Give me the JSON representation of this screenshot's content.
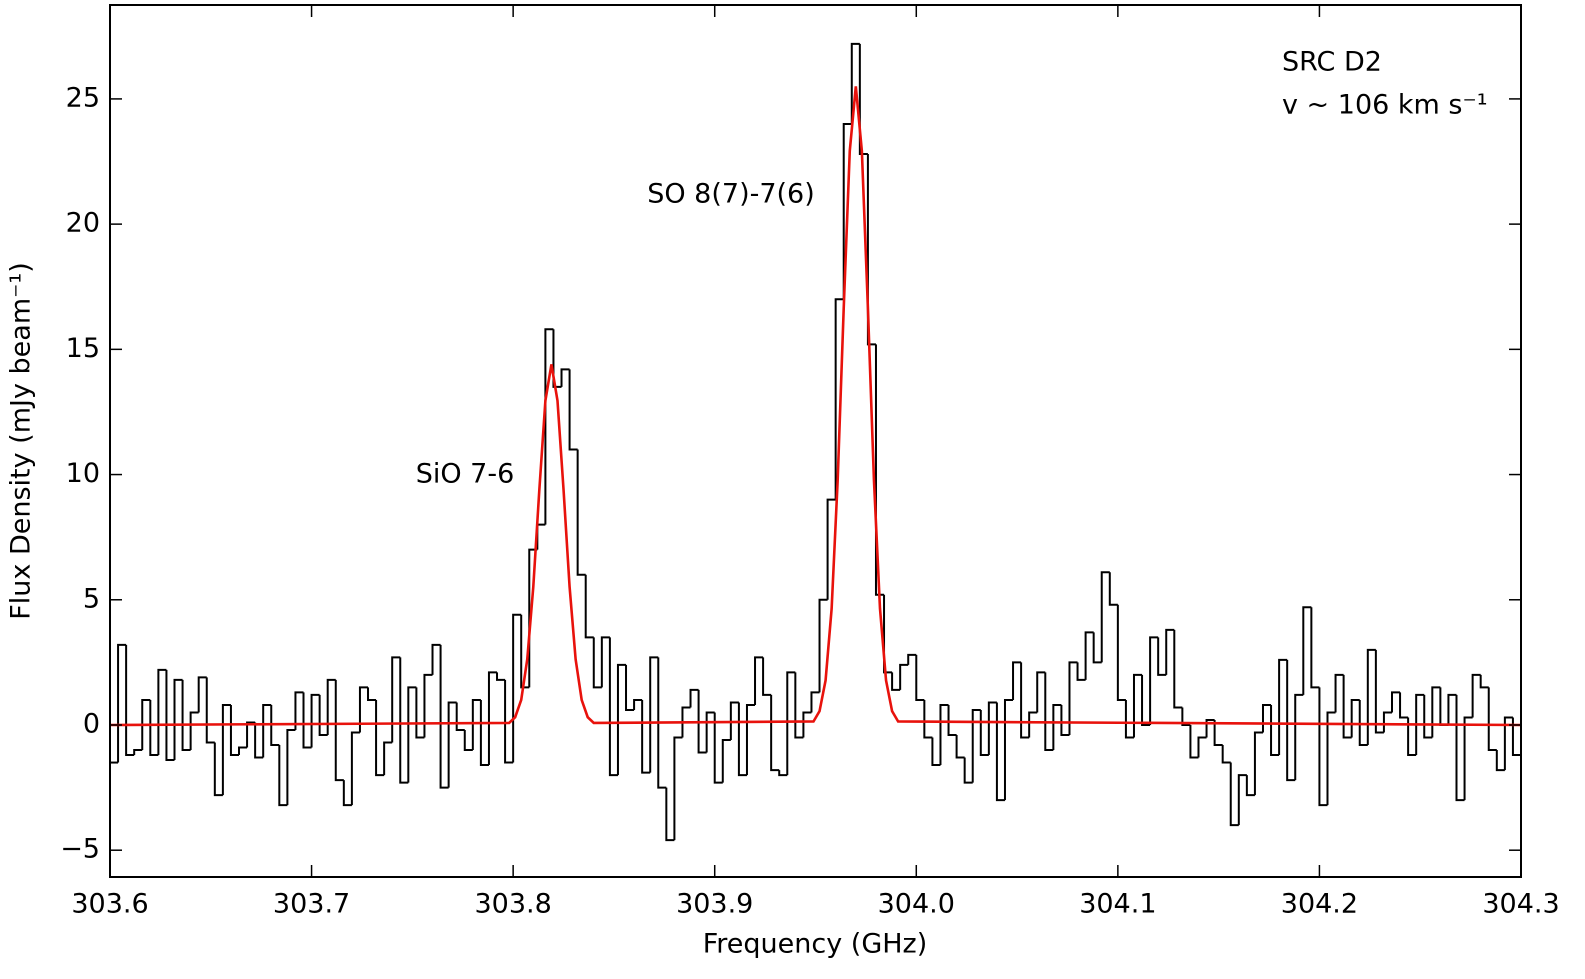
{
  "chart_data": {
    "type": "step",
    "xlabel": "Frequency (GHz)",
    "ylabel": "Flux Density (mJy beam⁻¹)",
    "annotations": [
      "SiO 7-6",
      "SO 8(7)-7(6)",
      "SRC D2",
      "v ~ 106 km s⁻¹"
    ],
    "xlim": [
      303.6,
      304.3
    ],
    "ylim": [
      -6.07,
      28.75
    ],
    "xticks": [
      303.6,
      303.7,
      303.8,
      303.9,
      {
        "value": 304.0,
        "label": "304.0"
      },
      304.1,
      304.2,
      304.3
    ],
    "yticks": [
      {
        "value": -5,
        "label": "−5"
      },
      0,
      5,
      10,
      15,
      20,
      25
    ],
    "channel_width": 0.004,
    "series": [
      {
        "color": "#000000",
        "style": "step",
        "x": [
          303.602,
          303.606,
          303.61,
          303.614,
          303.618,
          303.622,
          303.626,
          303.63,
          303.634,
          303.638,
          303.642,
          303.646,
          303.65,
          303.654,
          303.658,
          303.662,
          303.666,
          303.67,
          303.674,
          303.678,
          303.682,
          303.686,
          303.69,
          303.694,
          303.698,
          303.702,
          303.706,
          303.71,
          303.714,
          303.718,
          303.722,
          303.726,
          303.73,
          303.734,
          303.738,
          303.742,
          303.746,
          303.75,
          303.754,
          303.758,
          303.762,
          303.766,
          303.77,
          303.774,
          303.778,
          303.782,
          303.786,
          303.79,
          303.794,
          303.798,
          303.802,
          303.806,
          303.81,
          303.814,
          303.818,
          303.822,
          303.826,
          303.83,
          303.834,
          303.838,
          303.842,
          303.846,
          303.85,
          303.854,
          303.858,
          303.862,
          303.866,
          303.87,
          303.874,
          303.878,
          303.882,
          303.886,
          303.89,
          303.894,
          303.898,
          303.902,
          303.906,
          303.91,
          303.914,
          303.918,
          303.922,
          303.926,
          303.93,
          303.934,
          303.938,
          303.942,
          303.946,
          303.95,
          303.954,
          303.958,
          303.962,
          303.966,
          303.97,
          303.974,
          303.978,
          303.982,
          303.986,
          303.99,
          303.994,
          303.998,
          304.002,
          304.006,
          304.01,
          304.014,
          304.018,
          304.022,
          304.026,
          304.03,
          304.034,
          304.038,
          304.042,
          304.046,
          304.05,
          304.054,
          304.058,
          304.062,
          304.066,
          304.07,
          304.074,
          304.078,
          304.082,
          304.086,
          304.09,
          304.094,
          304.098,
          304.102,
          304.106,
          304.11,
          304.114,
          304.118,
          304.122,
          304.126,
          304.13,
          304.134,
          304.138,
          304.142,
          304.146,
          304.15,
          304.154,
          304.158,
          304.162,
          304.166,
          304.17,
          304.174,
          304.178,
          304.182,
          304.186,
          304.19,
          304.194,
          304.198,
          304.202,
          304.206,
          304.21,
          304.214,
          304.218,
          304.222,
          304.226,
          304.23,
          304.234,
          304.238,
          304.242,
          304.246,
          304.25,
          304.254,
          304.258,
          304.262,
          304.266,
          304.27,
          304.274,
          304.278,
          304.282,
          304.286,
          304.29,
          304.294,
          304.298
        ],
        "values": [
          -1.5,
          3.2,
          -1.2,
          -1.0,
          1.0,
          -1.2,
          2.2,
          -1.4,
          1.8,
          -1.0,
          0.5,
          1.9,
          -0.7,
          -2.8,
          0.8,
          -1.2,
          -0.9,
          0.1,
          -1.3,
          0.8,
          -0.8,
          -3.2,
          -0.2,
          1.3,
          -0.9,
          1.2,
          -0.4,
          1.8,
          -2.2,
          -3.2,
          -0.3,
          1.5,
          1.0,
          -2.0,
          -0.7,
          2.7,
          -2.3,
          1.5,
          -0.5,
          2.0,
          3.2,
          -2.5,
          0.9,
          -0.2,
          -1.0,
          1.0,
          -1.6,
          2.1,
          1.8,
          -1.5,
          4.4,
          1.5,
          7.0,
          8.0,
          15.8,
          13.5,
          14.2,
          11.0,
          6.0,
          3.5,
          1.5,
          3.5,
          -2.0,
          2.4,
          0.6,
          1.0,
          -1.9,
          2.7,
          -2.5,
          -4.6,
          -0.5,
          0.7,
          1.4,
          -1.1,
          0.5,
          -2.3,
          -0.6,
          0.9,
          -2.0,
          0.8,
          2.7,
          1.2,
          -1.8,
          -2.0,
          2.1,
          -0.5,
          0.5,
          1.3,
          5.0,
          9.0,
          17.0,
          24.0,
          27.2,
          22.8,
          15.2,
          5.2,
          2.1,
          1.4,
          2.4,
          2.8,
          1.0,
          -0.5,
          -1.6,
          0.8,
          -0.4,
          -1.3,
          -2.3,
          0.6,
          -1.2,
          0.9,
          -3.0,
          1.0,
          2.5,
          -0.5,
          0.5,
          2.1,
          -1.0,
          0.8,
          -0.4,
          2.5,
          1.8,
          3.7,
          2.5,
          6.1,
          4.8,
          1.0,
          -0.5,
          2.0,
          0.0,
          3.5,
          2.0,
          3.8,
          0.7,
          0.0,
          -1.3,
          -0.5,
          0.2,
          -0.8,
          -1.5,
          -4.0,
          -2.0,
          -2.8,
          -0.3,
          0.8,
          -1.2,
          2.6,
          -2.2,
          1.2,
          4.7,
          1.5,
          -3.2,
          0.5,
          2.0,
          -0.5,
          1.0,
          -0.8,
          3.0,
          -0.3,
          0.5,
          1.3,
          0.3,
          -1.2,
          1.2,
          -0.5,
          1.5,
          0.0,
          1.2,
          -3.0,
          0.3,
          2.0,
          1.5,
          -1.0,
          -1.8,
          0.3,
          -1.2
        ]
      },
      {
        "color": "#e8120c",
        "style": "line",
        "x": [
          303.6,
          303.798,
          303.801,
          303.804,
          303.807,
          303.81,
          303.813,
          303.816,
          303.819,
          303.822,
          303.825,
          303.828,
          303.831,
          303.834,
          303.837,
          303.84,
          303.949,
          303.952,
          303.955,
          303.958,
          303.961,
          303.964,
          303.967,
          303.97,
          303.973,
          303.976,
          303.979,
          303.982,
          303.985,
          303.988,
          303.991,
          304.3
        ],
        "values": [
          0,
          0.08,
          0.31,
          1.0,
          2.62,
          5.52,
          9.4,
          12.95,
          14.4,
          12.95,
          9.4,
          5.52,
          2.62,
          1.0,
          0.31,
          0.08,
          0.14,
          0.55,
          1.78,
          4.64,
          9.77,
          16.65,
          22.92,
          25.5,
          22.92,
          16.65,
          9.77,
          4.64,
          1.78,
          0.55,
          0.14,
          0
        ]
      }
    ]
  }
}
